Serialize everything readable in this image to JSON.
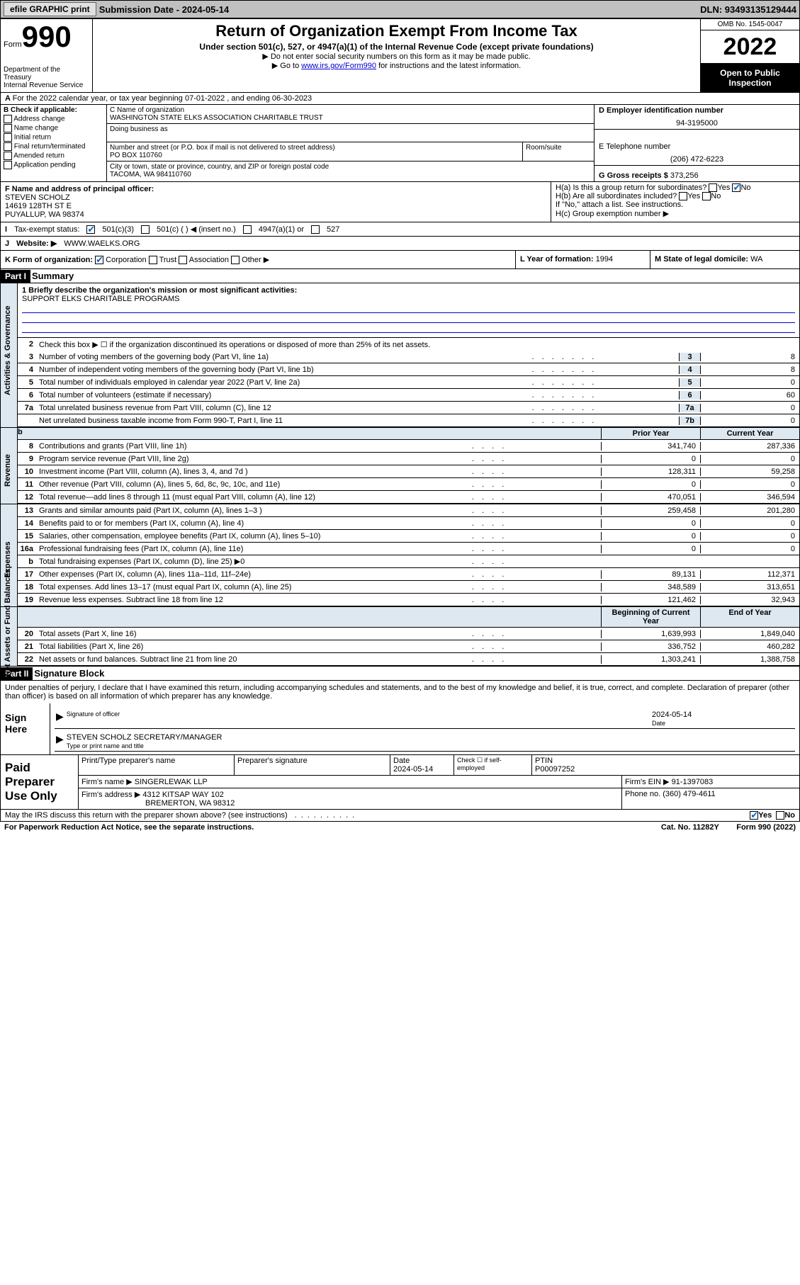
{
  "topBar": {
    "efile": "efile GRAPHIC print",
    "submission": "Submission Date - 2024-05-14",
    "dln": "DLN: 93493135129444"
  },
  "header": {
    "formWord": "Form",
    "formNo": "990",
    "title": "Return of Organization Exempt From Income Tax",
    "sub1": "Under section 501(c), 527, or 4947(a)(1) of the Internal Revenue Code (except private foundations)",
    "sub2": "▶ Do not enter social security numbers on this form as it may be made public.",
    "sub3_pre": "▶ Go to ",
    "sub3_link": "www.irs.gov/Form990",
    "sub3_post": " for instructions and the latest information.",
    "dept": "Department of the Treasury",
    "irs": "Internal Revenue Service",
    "omb": "OMB No. 1545-0047",
    "year": "2022",
    "open": "Open to Public Inspection"
  },
  "lineA": "For the 2022 calendar year, or tax year beginning 07-01-2022   , and ending 06-30-2023",
  "boxB": {
    "label": "B Check if applicable:",
    "opts": [
      "Address change",
      "Name change",
      "Initial return",
      "Final return/terminated",
      "Amended return",
      "Application pending"
    ]
  },
  "boxC": {
    "nameLabel": "C Name of organization",
    "name": "WASHINGTON STATE ELKS ASSOCIATION CHARITABLE TRUST",
    "dba": "Doing business as",
    "addrLabel": "Number and street (or P.O. box if mail is not delivered to street address)",
    "addr": "PO BOX 110760",
    "room": "Room/suite",
    "cityLabel": "City or town, state or province, country, and ZIP or foreign postal code",
    "city": "TACOMA, WA  984110760"
  },
  "boxD": {
    "einLabel": "D Employer identification number",
    "ein": "94-3195000",
    "phoneLabel": "E Telephone number",
    "phone": "(206) 472-6223",
    "grossLabel": "G Gross receipts $",
    "gross": "373,256"
  },
  "boxF": {
    "label": "F  Name and address of principal officer:",
    "name": "STEVEN SCHOLZ",
    "addr1": "14619 128TH ST E",
    "addr2": "PUYALLUP, WA  98374"
  },
  "boxH": {
    "ha": "H(a)  Is this a group return for subordinates?",
    "hb": "H(b)  Are all subordinates included?",
    "hb2": "If \"No,\" attach a list. See instructions.",
    "hc": "H(c)  Group exemption number ▶"
  },
  "taxExempt": {
    "label": "Tax-exempt status:",
    "o1": "501(c)(3)",
    "o2": "501(c) (   ) ◀ (insert no.)",
    "o3": "4947(a)(1) or",
    "o4": "527"
  },
  "website": {
    "label": "Website: ▶",
    "val": "WWW.WAELKS.ORG"
  },
  "formOrg": {
    "label": "K Form of organization:",
    "opts": [
      "Corporation",
      "Trust",
      "Association",
      "Other ▶"
    ]
  },
  "yearForm": {
    "label": "L Year of formation:",
    "val": "1994"
  },
  "domicile": {
    "label": "M State of legal domicile:",
    "val": "WA"
  },
  "partI": {
    "hdr": "Part I",
    "title": "Summary"
  },
  "mission": {
    "q": "1   Briefly describe the organization's mission or most significant activities:",
    "a": "SUPPORT ELKS CHARITABLE PROGRAMS"
  },
  "governance": {
    "label": "Activities & Governance",
    "l2": "Check this box ▶ ☐  if the organization discontinued its operations or disposed of more than 25% of its net assets.",
    "rows": [
      {
        "n": "3",
        "d": "Number of voting members of the governing body (Part VI, line 1a)",
        "box": "3",
        "v": "8"
      },
      {
        "n": "4",
        "d": "Number of independent voting members of the governing body (Part VI, line 1b)",
        "box": "4",
        "v": "8"
      },
      {
        "n": "5",
        "d": "Total number of individuals employed in calendar year 2022 (Part V, line 2a)",
        "box": "5",
        "v": "0"
      },
      {
        "n": "6",
        "d": "Total number of volunteers (estimate if necessary)",
        "box": "6",
        "v": "60"
      },
      {
        "n": "7a",
        "d": "Total unrelated business revenue from Part VIII, column (C), line 12",
        "box": "7a",
        "v": "0"
      },
      {
        "n": "",
        "d": "Net unrelated business taxable income from Form 990-T, Part I, line 11",
        "box": "7b",
        "v": "0"
      }
    ]
  },
  "colHdrs": {
    "b_label": "b",
    "prior": "Prior Year",
    "current": "Current Year",
    "begin": "Beginning of Current Year",
    "end": "End of Year"
  },
  "revenue": {
    "label": "Revenue",
    "rows": [
      {
        "n": "8",
        "d": "Contributions and grants (Part VIII, line 1h)",
        "p": "341,740",
        "c": "287,336"
      },
      {
        "n": "9",
        "d": "Program service revenue (Part VIII, line 2g)",
        "p": "0",
        "c": "0"
      },
      {
        "n": "10",
        "d": "Investment income (Part VIII, column (A), lines 3, 4, and 7d )",
        "p": "128,311",
        "c": "59,258"
      },
      {
        "n": "11",
        "d": "Other revenue (Part VIII, column (A), lines 5, 6d, 8c, 9c, 10c, and 11e)",
        "p": "0",
        "c": "0"
      },
      {
        "n": "12",
        "d": "Total revenue—add lines 8 through 11 (must equal Part VIII, column (A), line 12)",
        "p": "470,051",
        "c": "346,594"
      }
    ]
  },
  "expenses": {
    "label": "Expenses",
    "rows": [
      {
        "n": "13",
        "d": "Grants and similar amounts paid (Part IX, column (A), lines 1–3 )",
        "p": "259,458",
        "c": "201,280"
      },
      {
        "n": "14",
        "d": "Benefits paid to or for members (Part IX, column (A), line 4)",
        "p": "0",
        "c": "0"
      },
      {
        "n": "15",
        "d": "Salaries, other compensation, employee benefits (Part IX, column (A), lines 5–10)",
        "p": "0",
        "c": "0"
      },
      {
        "n": "16a",
        "d": "Professional fundraising fees (Part IX, column (A), line 11e)",
        "p": "0",
        "c": "0"
      },
      {
        "n": "b",
        "d": "Total fundraising expenses (Part IX, column (D), line 25) ▶0",
        "p": "",
        "c": "",
        "grey": true
      },
      {
        "n": "17",
        "d": "Other expenses (Part IX, column (A), lines 11a–11d, 11f–24e)",
        "p": "89,131",
        "c": "112,371"
      },
      {
        "n": "18",
        "d": "Total expenses. Add lines 13–17 (must equal Part IX, column (A), line 25)",
        "p": "348,589",
        "c": "313,651"
      },
      {
        "n": "19",
        "d": "Revenue less expenses. Subtract line 18 from line 12",
        "p": "121,462",
        "c": "32,943"
      }
    ]
  },
  "netassets": {
    "label": "Net Assets or Fund Balances",
    "rows": [
      {
        "n": "20",
        "d": "Total assets (Part X, line 16)",
        "p": "1,639,993",
        "c": "1,849,040"
      },
      {
        "n": "21",
        "d": "Total liabilities (Part X, line 26)",
        "p": "336,752",
        "c": "460,282"
      },
      {
        "n": "22",
        "d": "Net assets or fund balances. Subtract line 21 from line 20",
        "p": "1,303,241",
        "c": "1,388,758"
      }
    ]
  },
  "partII": {
    "hdr": "Part II",
    "title": "Signature Block"
  },
  "sig": {
    "declare": "Under penalties of perjury, I declare that I have examined this return, including accompanying schedules and statements, and to the best of my knowledge and belief, it is true, correct, and complete. Declaration of preparer (other than officer) is based on all information of which preparer has any knowledge.",
    "signHere": "Sign Here",
    "sigOfficer": "Signature of officer",
    "date": "2024-05-14",
    "dateLabel": "Date",
    "officer": "STEVEN SCHOLZ  SECRETARY/MANAGER",
    "typeLabel": "Type or print name and title"
  },
  "paid": {
    "label": "Paid Preparer Use Only",
    "h1": "Print/Type preparer's name",
    "h2": "Preparer's signature",
    "h3": "Date",
    "h3v": "2024-05-14",
    "h4": "Check ☐ if self-employed",
    "h5": "PTIN",
    "h5v": "P00097252",
    "firmNameLabel": "Firm's name    ▶",
    "firmName": "SINGERLEWAK LLP",
    "firmEinLabel": "Firm's EIN ▶",
    "firmEin": "91-1397083",
    "firmAddrLabel": "Firm's address ▶",
    "firmAddr": "4312 KITSAP WAY 102",
    "firmAddr2": "BREMERTON, WA  98312",
    "phoneLabel": "Phone no.",
    "phone": "(360) 479-4611"
  },
  "discuss": {
    "q": "May the IRS discuss this return with the preparer shown above? (see instructions)",
    "yes": "Yes",
    "no": "No"
  },
  "footer": {
    "pra": "For Paperwork Reduction Act Notice, see the separate instructions.",
    "cat": "Cat. No. 11282Y",
    "form": "Form 990 (2022)"
  },
  "yesno": {
    "yes": "Yes",
    "no": "No"
  }
}
